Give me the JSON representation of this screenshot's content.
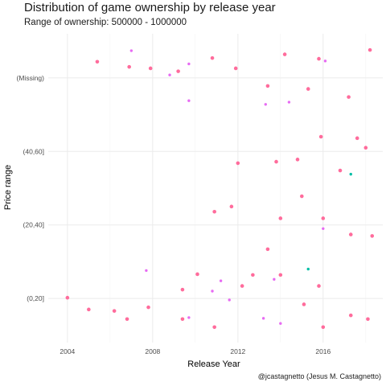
{
  "chart_data": {
    "type": "scatter",
    "title": "Distribution of game ownership by release year",
    "subtitle": "Range of ownership: 500000 - 1000000",
    "xlabel": "Release Year",
    "ylabel": "Price range",
    "caption": "@jcastagnetto (Jesus M. Castagnetto)",
    "x_ticks": [
      2004,
      2008,
      2012,
      2016
    ],
    "xlim": [
      2003.1,
      2018.8
    ],
    "y_categories": [
      "(0,20]",
      "(20,40]",
      "(40,60]",
      "(Missing)"
    ],
    "grid": true,
    "legend": "none",
    "colors": {
      "pink": "#ff6c9c",
      "magenta": "#e76bf3",
      "teal": "#00bfa6"
    },
    "points": [
      {
        "x": 2004.0,
        "y": "(0,20]",
        "j": 0.01,
        "c": "pink"
      },
      {
        "x": 2005.0,
        "y": "(0,20]",
        "j": -0.15,
        "c": "pink"
      },
      {
        "x": 2006.2,
        "y": "(0,20]",
        "j": -0.17,
        "c": "pink"
      },
      {
        "x": 2006.8,
        "y": "(0,20]",
        "j": -0.28,
        "c": "pink"
      },
      {
        "x": 2007.8,
        "y": "(0,20]",
        "j": -0.12,
        "c": "pink"
      },
      {
        "x": 2007.7,
        "y": "(0,20]",
        "j": 0.38,
        "c": "magenta"
      },
      {
        "x": 2009.4,
        "y": "(0,20]",
        "j": 0.12,
        "c": "pink"
      },
      {
        "x": 2009.4,
        "y": "(0,20]",
        "j": -0.28,
        "c": "pink"
      },
      {
        "x": 2009.7,
        "y": "(0,20]",
        "j": -0.26,
        "c": "magenta"
      },
      {
        "x": 2010.1,
        "y": "(0,20]",
        "j": 0.33,
        "c": "pink"
      },
      {
        "x": 2010.8,
        "y": "(0,20]",
        "j": 0.1,
        "c": "magenta"
      },
      {
        "x": 2010.9,
        "y": "(0,20]",
        "j": -0.39,
        "c": "pink"
      },
      {
        "x": 2011.2,
        "y": "(0,20]",
        "j": 0.24,
        "c": "magenta"
      },
      {
        "x": 2011.6,
        "y": "(0,20]",
        "j": -0.02,
        "c": "magenta"
      },
      {
        "x": 2012.2,
        "y": "(0,20]",
        "j": 0.17,
        "c": "pink"
      },
      {
        "x": 2012.7,
        "y": "(0,20]",
        "j": 0.32,
        "c": "pink"
      },
      {
        "x": 2013.2,
        "y": "(0,20]",
        "j": -0.27,
        "c": "magenta"
      },
      {
        "x": 2013.7,
        "y": "(0,20]",
        "j": 0.26,
        "c": "magenta"
      },
      {
        "x": 2014.0,
        "y": "(0,20]",
        "j": 0.32,
        "c": "pink"
      },
      {
        "x": 2014.0,
        "y": "(0,20]",
        "j": -0.34,
        "c": "magenta"
      },
      {
        "x": 2015.1,
        "y": "(0,20]",
        "j": -0.08,
        "c": "pink"
      },
      {
        "x": 2015.3,
        "y": "(0,20]",
        "j": 0.4,
        "c": "teal"
      },
      {
        "x": 2015.8,
        "y": "(0,20]",
        "j": 0.17,
        "c": "pink"
      },
      {
        "x": 2016.0,
        "y": "(0,20]",
        "j": -0.39,
        "c": "pink"
      },
      {
        "x": 2017.3,
        "y": "(0,20]",
        "j": -0.23,
        "c": "pink"
      },
      {
        "x": 2018.1,
        "y": "(0,20]",
        "j": -0.28,
        "c": "pink"
      },
      {
        "x": 2010.9,
        "y": "(20,40]",
        "j": 0.18,
        "c": "pink"
      },
      {
        "x": 2011.7,
        "y": "(20,40]",
        "j": 0.25,
        "c": "pink"
      },
      {
        "x": 2013.4,
        "y": "(20,40]",
        "j": -0.33,
        "c": "pink"
      },
      {
        "x": 2014.0,
        "y": "(20,40]",
        "j": 0.09,
        "c": "pink"
      },
      {
        "x": 2015.0,
        "y": "(20,40]",
        "j": 0.39,
        "c": "pink"
      },
      {
        "x": 2016.0,
        "y": "(20,40]",
        "j": -0.05,
        "c": "magenta"
      },
      {
        "x": 2016.0,
        "y": "(20,40]",
        "j": 0.09,
        "c": "pink"
      },
      {
        "x": 2017.3,
        "y": "(20,40]",
        "j": -0.13,
        "c": "pink"
      },
      {
        "x": 2018.3,
        "y": "(20,40]",
        "j": -0.15,
        "c": "pink"
      },
      {
        "x": 2012.0,
        "y": "(40,60]",
        "j": -0.16,
        "c": "pink"
      },
      {
        "x": 2013.8,
        "y": "(40,60]",
        "j": -0.14,
        "c": "pink"
      },
      {
        "x": 2014.8,
        "y": "(40,60]",
        "j": -0.11,
        "c": "pink"
      },
      {
        "x": 2016.8,
        "y": "(40,60]",
        "j": -0.26,
        "c": "pink"
      },
      {
        "x": 2017.3,
        "y": "(40,60]",
        "j": -0.31,
        "c": "teal"
      },
      {
        "x": 2015.9,
        "y": "(40,60]",
        "j": 0.2,
        "c": "pink"
      },
      {
        "x": 2017.6,
        "y": "(40,60]",
        "j": 0.18,
        "c": "pink"
      },
      {
        "x": 2018.0,
        "y": "(40,60]",
        "j": 0.05,
        "c": "pink"
      },
      {
        "x": 2005.4,
        "y": "(Missing)",
        "j": 0.22,
        "c": "pink"
      },
      {
        "x": 2007.0,
        "y": "(Missing)",
        "j": 0.37,
        "c": "magenta"
      },
      {
        "x": 2006.9,
        "y": "(Missing)",
        "j": 0.15,
        "c": "pink"
      },
      {
        "x": 2007.9,
        "y": "(Missing)",
        "j": 0.13,
        "c": "pink"
      },
      {
        "x": 2008.8,
        "y": "(Missing)",
        "j": 0.04,
        "c": "magenta"
      },
      {
        "x": 2009.2,
        "y": "(Missing)",
        "j": 0.09,
        "c": "pink"
      },
      {
        "x": 2009.7,
        "y": "(Missing)",
        "j": 0.19,
        "c": "magenta"
      },
      {
        "x": 2010.8,
        "y": "(Missing)",
        "j": 0.27,
        "c": "pink"
      },
      {
        "x": 2011.9,
        "y": "(Missing)",
        "j": 0.13,
        "c": "pink"
      },
      {
        "x": 2009.7,
        "y": "(Missing)",
        "j": -0.31,
        "c": "magenta"
      },
      {
        "x": 2013.4,
        "y": "(Missing)",
        "j": -0.11,
        "c": "pink"
      },
      {
        "x": 2013.3,
        "y": "(Missing)",
        "j": -0.36,
        "c": "magenta"
      },
      {
        "x": 2014.2,
        "y": "(Missing)",
        "j": 0.32,
        "c": "pink"
      },
      {
        "x": 2014.4,
        "y": "(Missing)",
        "j": -0.33,
        "c": "magenta"
      },
      {
        "x": 2015.3,
        "y": "(Missing)",
        "j": -0.15,
        "c": "pink"
      },
      {
        "x": 2015.8,
        "y": "(Missing)",
        "j": 0.26,
        "c": "pink"
      },
      {
        "x": 2016.1,
        "y": "(Missing)",
        "j": 0.23,
        "c": "magenta"
      },
      {
        "x": 2017.2,
        "y": "(Missing)",
        "j": -0.26,
        "c": "pink"
      },
      {
        "x": 2018.2,
        "y": "(Missing)",
        "j": 0.38,
        "c": "pink"
      }
    ]
  }
}
